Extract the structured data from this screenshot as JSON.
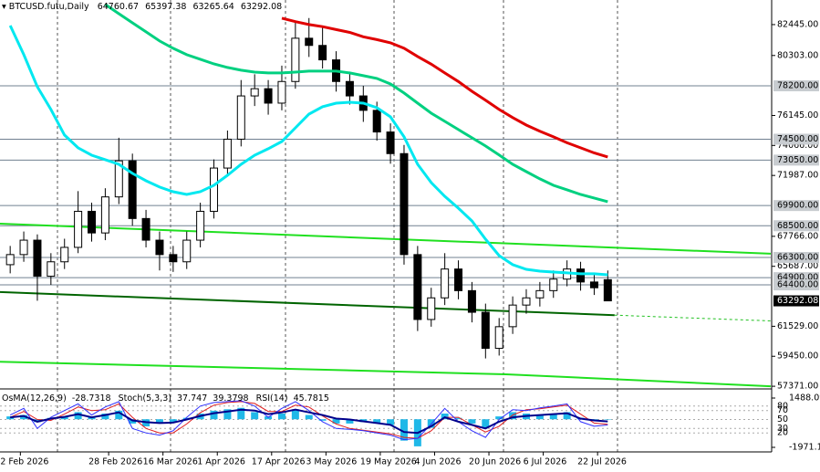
{
  "chart_data": {
    "type": "candlestick",
    "title": "BTCUSD.futu,Daily",
    "x": [
      "2026-01-30",
      "2026-02-03",
      "2026-02-07",
      "2026-02-11",
      "2026-02-15",
      "2026-02-19",
      "2026-02-23",
      "2026-02-27",
      "2026-03-03",
      "2026-03-07",
      "2026-03-11",
      "2026-03-15",
      "2026-03-19",
      "2026-03-23",
      "2026-03-27",
      "2026-03-31",
      "2026-04-04",
      "2026-04-08",
      "2026-04-12",
      "2026-04-16",
      "2026-04-20",
      "2026-04-24",
      "2026-04-28",
      "2026-05-02",
      "2026-05-06",
      "2026-05-10",
      "2026-05-14",
      "2026-05-18",
      "2026-05-22",
      "2026-05-26",
      "2026-05-30",
      "2026-06-03",
      "2026-06-07",
      "2026-06-11",
      "2026-06-15",
      "2026-06-19",
      "2026-06-23",
      "2026-06-27",
      "2026-07-01",
      "2026-07-05",
      "2026-07-09",
      "2026-07-13",
      "2026-07-17",
      "2026-07-21",
      "2026-07-25"
    ],
    "open": [
      65800,
      66500,
      67500,
      65000,
      66000,
      67000,
      69500,
      68000,
      70500,
      73000,
      69000,
      67500,
      66500,
      66000,
      67500,
      69500,
      72500,
      74500,
      77500,
      78000,
      77000,
      78500,
      81500,
      81000,
      80000,
      78500,
      77500,
      76500,
      75000,
      73500,
      66500,
      62000,
      63500,
      65500,
      64000,
      62500,
      60000,
      61500,
      63000,
      63500,
      64000,
      64800,
      65500,
      64600,
      64760.67
    ],
    "high": [
      67100,
      68100,
      67900,
      66600,
      67600,
      70900,
      70100,
      71100,
      74600,
      73500,
      69600,
      68100,
      67100,
      68100,
      70100,
      73100,
      75100,
      78600,
      79000,
      78600,
      79600,
      82600,
      82900,
      82300,
      80600,
      79100,
      78200,
      77100,
      75600,
      74100,
      67100,
      64200,
      66600,
      66100,
      64600,
      63100,
      62100,
      63600,
      64100,
      64600,
      65400,
      66100,
      66000,
      65100,
      65397.38
    ],
    "low": [
      65200,
      66000,
      63300,
      64400,
      65500,
      66600,
      67400,
      67500,
      70000,
      68500,
      67000,
      65400,
      65300,
      65500,
      67000,
      69000,
      72000,
      74000,
      76800,
      76200,
      76500,
      78000,
      80200,
      79400,
      77800,
      76900,
      75700,
      74400,
      72800,
      65800,
      61200,
      61500,
      63000,
      63400,
      61800,
      59300,
      59500,
      61000,
      62400,
      62900,
      63500,
      64300,
      64000,
      63700,
      63265.64
    ],
    "close": [
      66500,
      67500,
      65000,
      66000,
      67000,
      69500,
      68000,
      70500,
      73000,
      69000,
      67500,
      66500,
      66000,
      67500,
      69500,
      72500,
      74500,
      77500,
      78000,
      77000,
      78500,
      81500,
      81000,
      80000,
      78500,
      77500,
      76500,
      75000,
      73500,
      66500,
      62000,
      63500,
      65500,
      64000,
      62500,
      60000,
      61500,
      63000,
      63500,
      64000,
      64800,
      65500,
      64600,
      64200,
      63292.08
    ],
    "xlim": [
      "2026-01-27",
      "2026-09-11"
    ],
    "xticks": [
      {
        "value": "2026-02-02",
        "label": "2 Feb 2026"
      },
      {
        "value": "2026-02-28",
        "label": "28 Feb 2026"
      },
      {
        "value": "2026-03-16",
        "label": "16 Mar 2026"
      },
      {
        "value": "2026-04-01",
        "label": "1 Apr 2026"
      },
      {
        "value": "2026-04-17",
        "label": "17 Apr 2026"
      },
      {
        "value": "2026-05-03",
        "label": "3 May 2026"
      },
      {
        "value": "2026-05-19",
        "label": "19 May 2026"
      },
      {
        "value": "2026-06-04",
        "label": "4 Jun 2026"
      },
      {
        "value": "2026-06-20",
        "label": "20 Jun 2026"
      },
      {
        "value": "2026-07-06",
        "label": "6 Jul 2026"
      },
      {
        "value": "2026-07-22",
        "label": "22 Jul 2026"
      }
    ],
    "ylim": [
      57250,
      84150
    ],
    "yticks": [
      {
        "value": 82445,
        "label": "82445.00"
      },
      {
        "value": 80303,
        "label": "80303.00"
      },
      {
        "value": 76145,
        "label": "76145.00"
      },
      {
        "value": 74066,
        "label": "74066.00"
      },
      {
        "value": 71987,
        "label": "71987.00"
      },
      {
        "value": 67766,
        "label": "67766.00"
      },
      {
        "value": 65687,
        "label": "65687.00"
      },
      {
        "value": 61529,
        "label": "61529.00"
      },
      {
        "value": 59450,
        "label": "59450.00"
      },
      {
        "value": 57371,
        "label": "57371.00"
      }
    ],
    "levels": [
      {
        "value": 78200,
        "label": "78200.00"
      },
      {
        "value": 74500,
        "label": "74500.00"
      },
      {
        "value": 73050,
        "label": "73050.00"
      },
      {
        "value": 69900,
        "label": "69900.00"
      },
      {
        "value": 68500,
        "label": "68500.00"
      },
      {
        "value": 66300,
        "label": "66300.00"
      },
      {
        "value": 64900,
        "label": "64900.00"
      },
      {
        "value": 64400,
        "label": "64400.00"
      }
    ],
    "level_color": "#708090",
    "lines": [
      {
        "color": "#e00000",
        "values": [
          null,
          null,
          null,
          null,
          null,
          null,
          null,
          null,
          null,
          null,
          null,
          null,
          null,
          null,
          null,
          null,
          null,
          null,
          null,
          null,
          82890,
          82650,
          82445,
          82300,
          82100,
          81900,
          81600,
          81400,
          81180,
          80800,
          80230,
          79700,
          79090,
          78500,
          77820,
          77200,
          76560,
          76000,
          75480,
          75050,
          74660,
          74250,
          73900,
          73550,
          73270
        ]
      },
      {
        "color": "#00d080",
        "values": [
          null,
          null,
          null,
          null,
          null,
          null,
          null,
          83840,
          83200,
          82570,
          81940,
          81310,
          80800,
          80360,
          80040,
          79720,
          79470,
          79280,
          79150,
          79090,
          79090,
          79150,
          79220,
          79220,
          79220,
          79090,
          78900,
          78710,
          78330,
          77700,
          77000,
          76300,
          75740,
          75170,
          74600,
          74030,
          73400,
          72760,
          72250,
          71750,
          71300,
          70990,
          70670,
          70420,
          70170
        ]
      },
      {
        "color": "#00e8f0",
        "values": [
          82380,
          80360,
          78140,
          76560,
          74790,
          73900,
          73390,
          73080,
          72760,
          72130,
          71620,
          71180,
          70860,
          70670,
          70860,
          71300,
          72000,
          72760,
          73390,
          73840,
          74340,
          75290,
          76240,
          76750,
          77000,
          77060,
          77000,
          76680,
          76050,
          74660,
          72760,
          71490,
          70540,
          69720,
          68830,
          67570,
          66430,
          65800,
          65480,
          65350,
          65290,
          65230,
          65170,
          65170,
          65100
        ]
      }
    ],
    "trend_lines": [
      {
        "color": "#20e020",
        "dash": false,
        "x": [
          "2026-01-27",
          "2026-09-11"
        ],
        "values": [
          68645,
          66560
        ]
      },
      {
        "color": "#006400",
        "dash": false,
        "x": [
          "2026-01-27",
          "2026-07-27"
        ],
        "values": [
          63900,
          62300
        ]
      },
      {
        "color": "#20c020",
        "dash": true,
        "x": [
          "2026-07-27",
          "2026-09-11"
        ],
        "values": [
          62300,
          61900
        ]
      },
      {
        "color": "#20e020",
        "dash": false,
        "x": [
          "2026-01-27",
          "2026-04-11",
          "2026-06-25",
          "2026-09-11"
        ],
        "values": [
          59070,
          58640,
          58200,
          57370
        ]
      }
    ],
    "indicator": {
      "ylim": [
        -1971.1314,
        1488.0968
      ],
      "yticks": [
        1488.0968,
        -1971.1314
      ],
      "osc_ylim": [
        0,
        100
      ],
      "osc_levels": [
        80,
        70,
        50,
        30,
        20
      ],
      "osma": {
        "name": "OsMA(12,26,9)",
        "color": "#20b8e8",
        "values": [
          200,
          300,
          -200,
          100,
          200,
          500,
          200,
          400,
          600,
          -300,
          -500,
          -300,
          -200,
          100,
          400,
          600,
          700,
          800,
          500,
          200,
          400,
          700,
          300,
          -100,
          -300,
          -300,
          -200,
          -300,
          -400,
          -1500,
          -1900,
          -600,
          400,
          100,
          -300,
          -600,
          200,
          500,
          400,
          300,
          400,
          500,
          100,
          -100,
          -28.7318
        ]
      },
      "stoch": {
        "name": "Stoch(5,3,3)",
        "main": {
          "color": "#3030ff",
          "values": [
            60,
            75,
            30,
            55,
            70,
            85,
            60,
            78,
            90,
            30,
            20,
            15,
            25,
            55,
            80,
            88,
            90,
            92,
            80,
            55,
            75,
            90,
            70,
            45,
            30,
            28,
            25,
            20,
            15,
            5,
            8,
            40,
            75,
            45,
            25,
            10,
            50,
            72,
            70,
            76,
            80,
            85,
            45,
            35,
            37.747
          ]
        },
        "signal": {
          "color": "#e02020",
          "values": [
            55,
            68,
            50,
            48,
            62,
            78,
            70,
            72,
            85,
            55,
            30,
            20,
            20,
            40,
            65,
            82,
            88,
            90,
            86,
            68,
            68,
            82,
            78,
            58,
            40,
            30,
            26,
            22,
            18,
            10,
            8,
            25,
            55,
            55,
            38,
            22,
            35,
            60,
            72,
            74,
            78,
            82,
            62,
            42,
            39.3798
          ]
        }
      },
      "rsi": {
        "name": "RSI(14)",
        "color": "#00008b",
        "values": [
          55,
          58,
          45,
          52,
          56,
          62,
          55,
          60,
          66,
          48,
          44,
          42,
          43,
          50,
          58,
          64,
          68,
          72,
          70,
          62,
          66,
          72,
          66,
          60,
          52,
          50,
          46,
          42,
          38,
          22,
          20,
          35,
          55,
          45,
          38,
          30,
          45,
          55,
          58,
          60,
          62,
          64,
          52,
          48,
          45.7815
        ]
      }
    }
  }
}
